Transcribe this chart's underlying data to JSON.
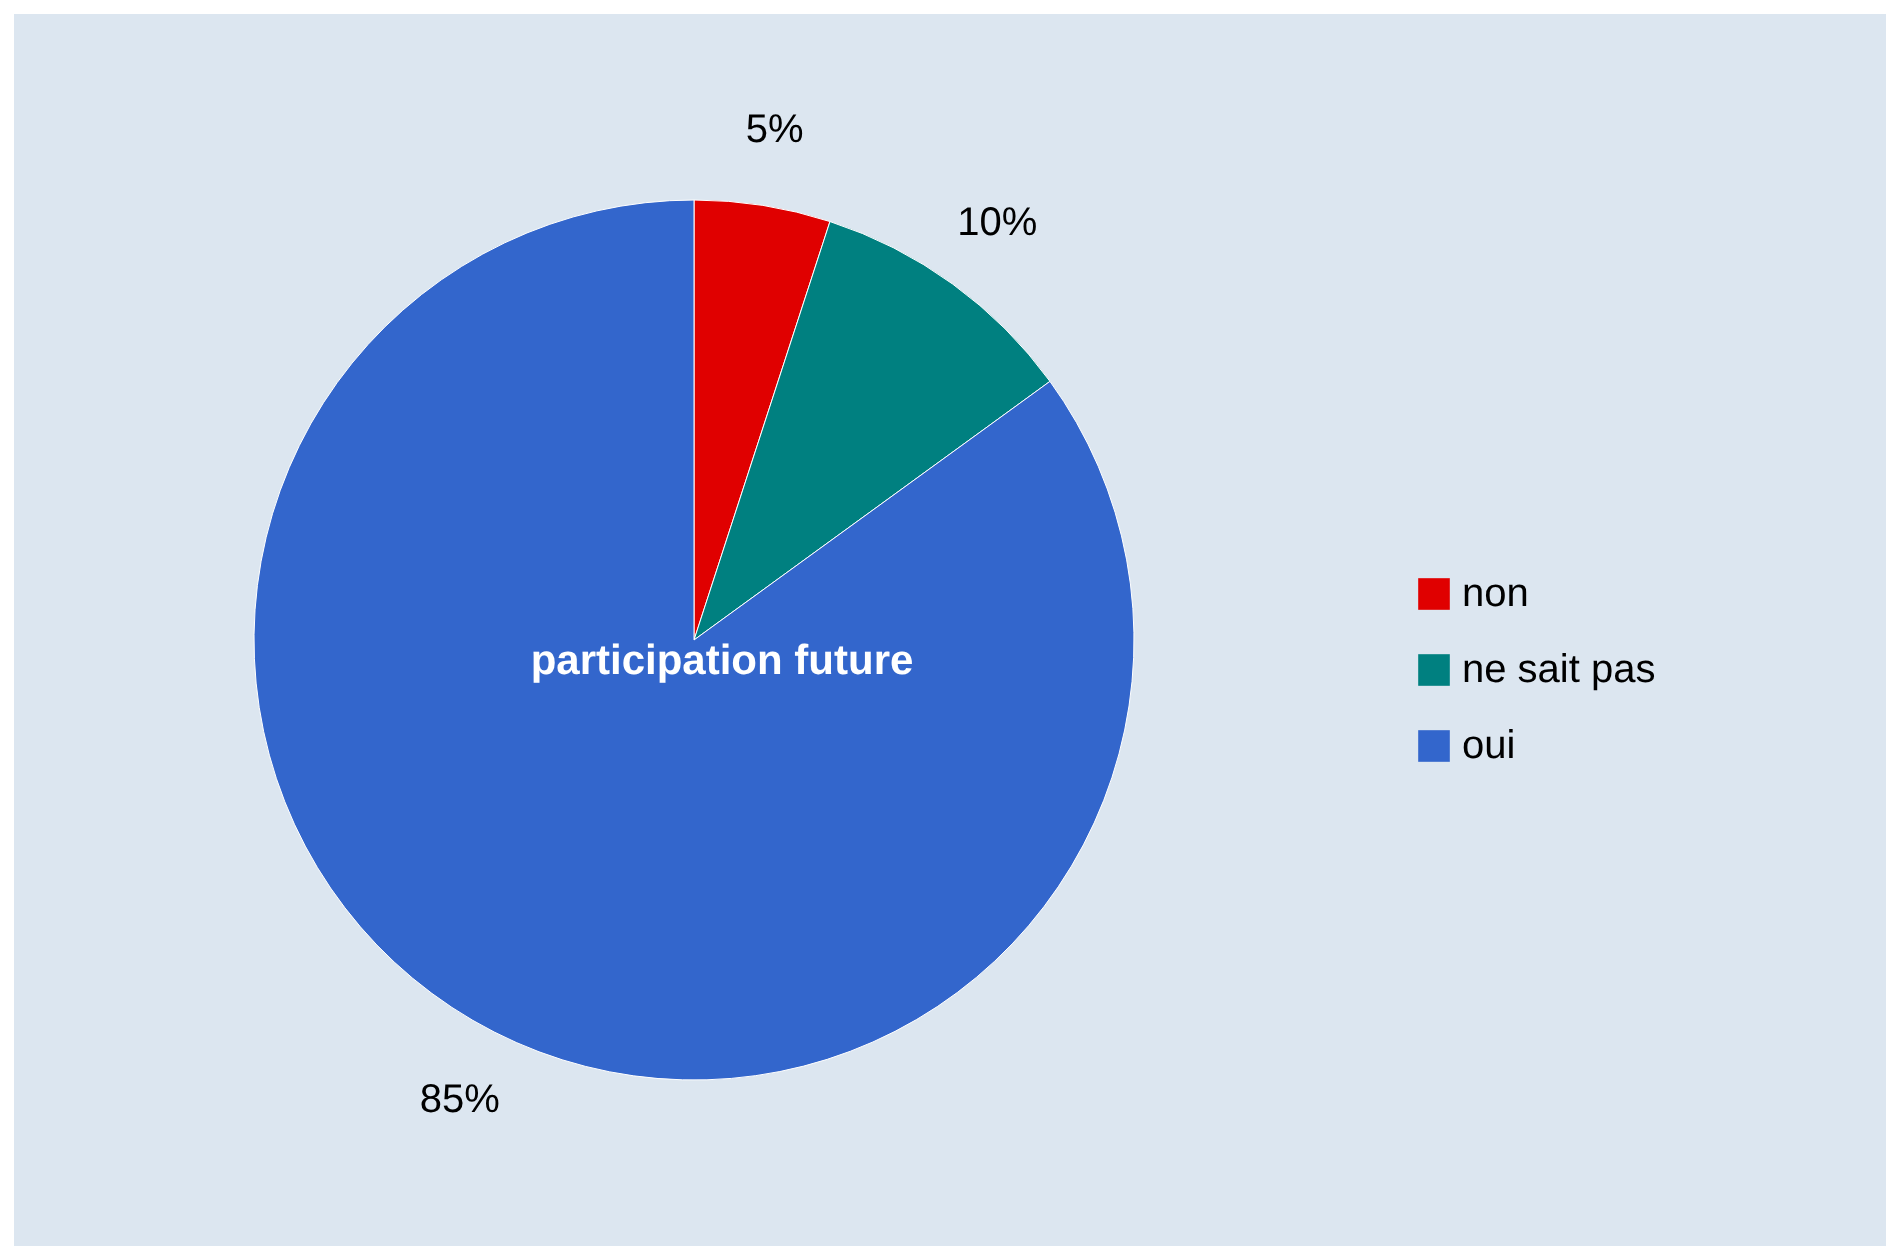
{
  "chart_data": {
    "type": "pie",
    "title": "participation future",
    "categories": [
      "non",
      "ne sait pas",
      "oui"
    ],
    "values": [
      5,
      10,
      85
    ],
    "colors": [
      "#e00000",
      "#008080",
      "#3366cc"
    ],
    "value_labels": [
      "5%",
      "10%",
      "85%"
    ],
    "legend": "right"
  }
}
